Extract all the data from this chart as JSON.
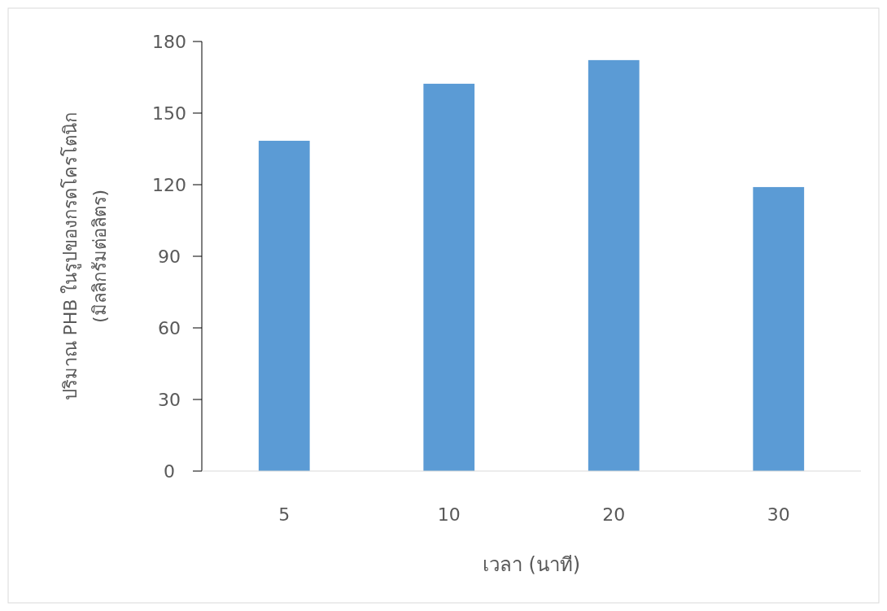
{
  "chart_data": {
    "type": "bar",
    "xlabel": "เวลา (นาที)",
    "ylabel": "ปริมาณ PHB ในรูปของกรดโครโตนิก\n(มิลลิกรัมต่อลิตร)",
    "categories": [
      "5",
      "10",
      "20",
      "30"
    ],
    "values": [
      138.4,
      162.3,
      172.2,
      119
    ],
    "color": "#5b9bd5",
    "ylim": [
      0,
      180
    ],
    "yticks": [
      0,
      30,
      60,
      90,
      120,
      150,
      180
    ],
    "grid": false
  }
}
